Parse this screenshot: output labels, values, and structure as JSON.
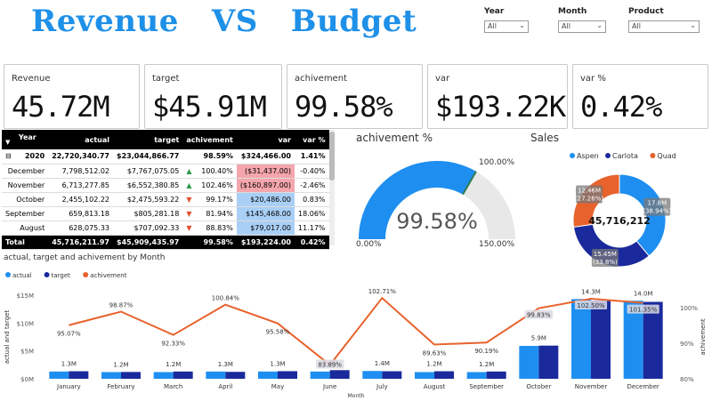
{
  "header": {
    "title": "Revenue   VS   Budget"
  },
  "slicers": [
    {
      "label": "Year",
      "value": "All"
    },
    {
      "label": "Month",
      "value": "All"
    },
    {
      "label": "Product",
      "value": "All"
    }
  ],
  "kpis": [
    {
      "label": "Revenue",
      "value": "45.72M"
    },
    {
      "label": "target",
      "value": "$45.91M"
    },
    {
      "label": "achivement",
      "value": "99.58%"
    },
    {
      "label": "var",
      "value": "$193.22K"
    },
    {
      "label": "var %",
      "value": "0.42%"
    }
  ],
  "matrix": {
    "headers": [
      "Year",
      "actual",
      "target",
      "achivement",
      "var",
      "var %"
    ],
    "year_row": {
      "expand": "⊟",
      "label": "2020",
      "actual": "22,720,340.77",
      "target": "$23,044,866.77",
      "achivement": "98.59%",
      "var": "$324,466.00",
      "var_pct": "1.41%"
    },
    "rows": [
      {
        "label": "December",
        "actual": "7,798,512.02",
        "target": "$7,767,075.05",
        "trend": "up",
        "achivement": "100.40%",
        "var": "($31,437.00)",
        "var_pct": "-0.40%",
        "var_state": "neg"
      },
      {
        "label": "November",
        "actual": "6,713,277.85",
        "target": "$6,552,380.85",
        "trend": "up",
        "achivement": "102.46%",
        "var": "($160,897.00)",
        "var_pct": "-2.46%",
        "var_state": "neg"
      },
      {
        "label": "October",
        "actual": "2,455,102.22",
        "target": "$2,475,593.22",
        "trend": "down",
        "achivement": "99.17%",
        "var": "$20,486.00",
        "var_pct": "0.83%",
        "var_state": "pos"
      },
      {
        "label": "September",
        "actual": "659,813.18",
        "target": "$805,281.18",
        "trend": "down",
        "achivement": "81.94%",
        "var": "$145,468.00",
        "var_pct": "18.06%",
        "var_state": "pos"
      },
      {
        "label": "August",
        "actual": "628,075.33",
        "target": "$707,092.33",
        "trend": "down",
        "achivement": "88.83%",
        "var": "$79,017.00",
        "var_pct": "11.17%",
        "var_state": "pos"
      }
    ],
    "total_row": {
      "label": "Total",
      "actual": "45,716,211.97",
      "target": "$45,909,435.97",
      "achivement": "99.58%",
      "var": "$193,224.00",
      "var_pct": "0.42%"
    },
    "colors": {
      "neg": "#F4A6AC",
      "pos": "#A9CFF6",
      "up": "#2e9a4c",
      "down": "#e0522f"
    }
  },
  "chart_data": [
    {
      "type": "gauge",
      "title": "achivement %",
      "value": 99.58,
      "value_label": "99.58%",
      "min": 0,
      "min_label": "0.00%",
      "max": 150,
      "max_label": "150.00%",
      "target": 100,
      "target_label": "100.00%",
      "colors": {
        "fill": "#1E8FF0",
        "track": "#E8E8E8",
        "target": "#2e7d4f"
      }
    },
    {
      "type": "pie",
      "variant": "donut",
      "title": "Sales",
      "center_label": "45,716,212",
      "legend_position": "top",
      "slices": [
        {
          "name": "Aspen",
          "value": 17.8,
          "label_value": "17.8M",
          "label_pct": "(38.94%)",
          "color": "#1E8FF0"
        },
        {
          "name": "Carlota",
          "value": 15.45,
          "label_value": "15.45M",
          "label_pct": "(33.8%)",
          "color": "#1A2A9C"
        },
        {
          "name": "Quad",
          "value": 12.46,
          "label_value": "12.46M",
          "label_pct": "(27.26%)",
          "color": "#E8622C"
        }
      ]
    },
    {
      "type": "bar",
      "variant": "combo-bar-line",
      "title": "actual, target and achivement by Month",
      "xlabel": "Month",
      "ylabel": "actual and target",
      "y2label": "achivement",
      "legend_position": "top-left",
      "categories": [
        "January",
        "February",
        "March",
        "April",
        "May",
        "June",
        "July",
        "August",
        "September",
        "October",
        "November",
        "December"
      ],
      "ylim": [
        0,
        15
      ],
      "y_ticks": [
        0,
        5,
        10,
        15
      ],
      "y_tick_labels": [
        "$0M",
        "$5M",
        "$10M",
        "$15M"
      ],
      "y2lim": [
        80,
        103.5
      ],
      "y2_ticks": [
        80,
        90,
        100
      ],
      "y2_tick_labels": [
        "80%",
        "90%",
        "100%"
      ],
      "series": [
        {
          "name": "actual",
          "kind": "bar",
          "color": "#1E8FF0",
          "values": [
            1.3,
            1.2,
            1.2,
            1.3,
            1.3,
            1.3,
            1.4,
            1.2,
            1.2,
            5.9,
            14.3,
            14.0
          ],
          "labels": [
            "1.3M",
            "1.2M",
            "1.2M",
            "1.3M",
            "1.3M",
            "1.3M",
            "1.4M",
            "1.2M",
            "1.2M",
            "5.9M",
            "14.3M",
            "14.0M"
          ]
        },
        {
          "name": "target",
          "kind": "bar",
          "color": "#1A2A9C",
          "values": [
            1.35,
            1.22,
            1.3,
            1.24,
            1.36,
            1.55,
            1.35,
            1.35,
            1.3,
            5.95,
            14.0,
            13.8
          ]
        },
        {
          "name": "achivement",
          "kind": "line",
          "axis": "y2",
          "color": "#E8622C",
          "values": [
            95.07,
            98.87,
            92.33,
            100.84,
            95.58,
            83.89,
            102.71,
            89.63,
            90.19,
            99.83,
            102.5,
            101.35
          ],
          "labels": [
            "95.07%",
            "98.87%",
            "92.33%",
            "100.84%",
            "95.58%",
            "83.89%",
            "102.71%",
            "89.63%",
            "90.19%",
            "99.83%",
            "102.50%",
            "101.35%"
          ]
        }
      ]
    }
  ]
}
